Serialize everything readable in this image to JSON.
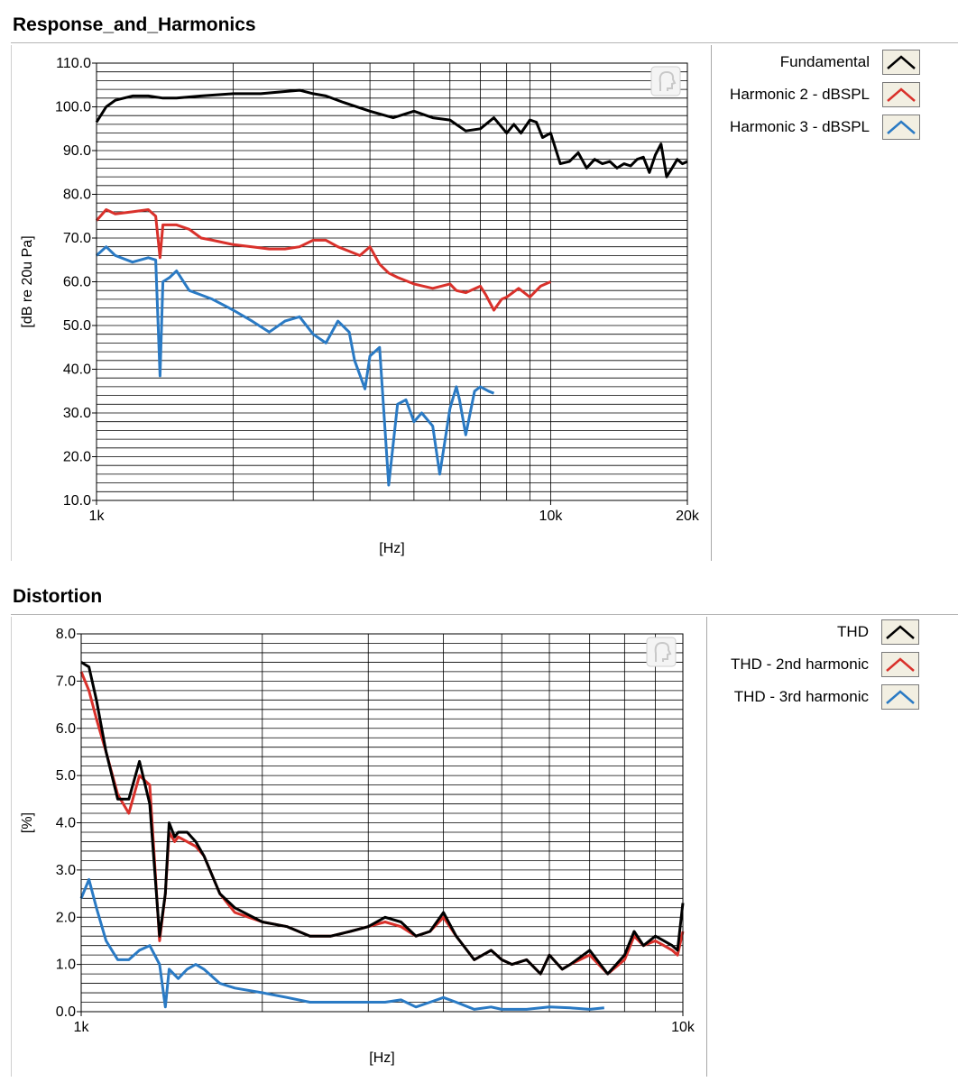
{
  "charts": [
    {
      "section_title": "Response_and_Harmonics",
      "legend": [
        {
          "label": "Fundamental",
          "color": "#000000"
        },
        {
          "label": "Harmonic 2 - dBSPL",
          "color": "#d9312b"
        },
        {
          "label": "Harmonic 3 - dBSPL",
          "color": "#2a7ac4"
        }
      ]
    },
    {
      "section_title": "Distortion",
      "legend": [
        {
          "label": "THD",
          "color": "#000000"
        },
        {
          "label": "THD - 2nd harmonic",
          "color": "#d9312b"
        },
        {
          "label": "THD - 3rd harmonic",
          "color": "#2a7ac4"
        }
      ]
    }
  ],
  "chart_data": [
    {
      "type": "line",
      "title": "Response_and_Harmonics",
      "xlabel": "[Hz]",
      "ylabel": "[dB re 20u Pa]",
      "xscale": "log",
      "xlim": [
        1000,
        20000
      ],
      "ylim": [
        10,
        110
      ],
      "x_tick_labels": [
        {
          "value": 1000,
          "label": "1k"
        },
        {
          "value": 10000,
          "label": "10k"
        },
        {
          "value": 20000,
          "label": "20k"
        }
      ],
      "y_tick_labels": [
        "10.0",
        "20.0",
        "30.0",
        "40.0",
        "50.0",
        "60.0",
        "70.0",
        "80.0",
        "90.0",
        "100.0",
        "110.0"
      ],
      "y_ticks": [
        10,
        20,
        30,
        40,
        50,
        60,
        70,
        80,
        90,
        100,
        110
      ],
      "grid": true,
      "legend_position": "right",
      "series": [
        {
          "name": "Fundamental",
          "color": "#000000",
          "x": [
            1000,
            1050,
            1100,
            1200,
            1300,
            1400,
            1500,
            1700,
            2000,
            2300,
            2600,
            2800,
            3000,
            3200,
            3500,
            4000,
            4500,
            5000,
            5500,
            6000,
            6500,
            7000,
            7500,
            8000,
            8300,
            8600,
            9000,
            9300,
            9600,
            10000,
            10500,
            11000,
            11500,
            12000,
            12500,
            13000,
            13500,
            14000,
            14500,
            15000,
            15500,
            16000,
            16500,
            17000,
            17500,
            18000,
            18500,
            19000,
            19500,
            20000
          ],
          "y": [
            96.5,
            100,
            101.5,
            102.5,
            102.5,
            102,
            102,
            102.5,
            103,
            103,
            103.5,
            103.8,
            103,
            102.5,
            101,
            99,
            97.5,
            99,
            97.5,
            97,
            94.5,
            95,
            97.5,
            94,
            96,
            94,
            97,
            96.5,
            93,
            94,
            87,
            87.5,
            89.5,
            86,
            88,
            87,
            87.5,
            86,
            87,
            86.5,
            88,
            88.5,
            85,
            89,
            91.5,
            84,
            86,
            88,
            87,
            87.5
          ]
        },
        {
          "name": "Harmonic 2 - dBSPL",
          "color": "#d9312b",
          "x": [
            1000,
            1050,
            1100,
            1200,
            1300,
            1350,
            1380,
            1400,
            1450,
            1500,
            1600,
            1700,
            1800,
            2000,
            2200,
            2400,
            2600,
            2800,
            3000,
            3200,
            3400,
            3600,
            3800,
            4000,
            4200,
            4400,
            4600,
            5000,
            5500,
            6000,
            6200,
            6500,
            7000,
            7200,
            7500,
            7800,
            8000,
            8500,
            9000,
            9500,
            10000
          ],
          "y": [
            74,
            76.5,
            75.5,
            76,
            76.5,
            75,
            65.5,
            73,
            73,
            73,
            72,
            70,
            69.5,
            68.5,
            68,
            67.5,
            67.5,
            68,
            69.5,
            69.5,
            68,
            67,
            66,
            68,
            64,
            62,
            61,
            59.5,
            58.5,
            59.5,
            58,
            57.5,
            59,
            57,
            53.5,
            56,
            56.5,
            58.5,
            56.5,
            59,
            60
          ]
        },
        {
          "name": "Harmonic 3 - dBSPL",
          "color": "#2a7ac4",
          "x": [
            1000,
            1050,
            1100,
            1200,
            1300,
            1350,
            1380,
            1400,
            1450,
            1500,
            1600,
            1700,
            1800,
            2000,
            2200,
            2400,
            2600,
            2800,
            3000,
            3200,
            3400,
            3600,
            3700,
            3900,
            4000,
            4200,
            4400,
            4600,
            4800,
            5000,
            5200,
            5500,
            5700,
            6000,
            6200,
            6300,
            6500,
            6800,
            7000,
            7300,
            7500
          ],
          "y": [
            66,
            68,
            66,
            64.5,
            65.5,
            65,
            38.5,
            60,
            61,
            62.5,
            58,
            57,
            56,
            53.5,
            51,
            48.5,
            51,
            52,
            48,
            46,
            51,
            48.5,
            42,
            35.5,
            43,
            45,
            13.5,
            32,
            33,
            28,
            30,
            27,
            16,
            31,
            36,
            33,
            25,
            35,
            36,
            35,
            34.5
          ]
        }
      ]
    },
    {
      "type": "line",
      "title": "Distortion",
      "xlabel": "[Hz]",
      "ylabel": "[%]",
      "xscale": "log",
      "xlim": [
        1000,
        10000
      ],
      "ylim": [
        0,
        8
      ],
      "x_tick_labels": [
        {
          "value": 1000,
          "label": "1k"
        },
        {
          "value": 10000,
          "label": "10k"
        }
      ],
      "y_tick_labels": [
        "0.0",
        "1.0",
        "2.0",
        "3.0",
        "4.0",
        "5.0",
        "6.0",
        "7.0",
        "8.0"
      ],
      "y_ticks": [
        0,
        1,
        2,
        3,
        4,
        5,
        6,
        7,
        8
      ],
      "grid": true,
      "legend_position": "right",
      "series": [
        {
          "name": "THD",
          "color": "#000000",
          "x": [
            1000,
            1030,
            1060,
            1100,
            1150,
            1200,
            1250,
            1300,
            1350,
            1380,
            1400,
            1430,
            1450,
            1500,
            1550,
            1600,
            1700,
            1800,
            2000,
            2200,
            2400,
            2600,
            2800,
            3000,
            3200,
            3400,
            3600,
            3800,
            4000,
            4200,
            4500,
            4800,
            5000,
            5200,
            5500,
            5800,
            6000,
            6300,
            6500,
            7000,
            7500,
            8000,
            8300,
            8600,
            9000,
            9300,
            9600,
            9800,
            10000
          ],
          "y": [
            7.4,
            7.3,
            6.6,
            5.5,
            4.5,
            4.5,
            5.3,
            4.4,
            1.6,
            2.5,
            4,
            3.7,
            3.8,
            3.8,
            3.6,
            3.3,
            2.5,
            2.2,
            1.9,
            1.8,
            1.6,
            1.6,
            1.7,
            1.8,
            2,
            1.9,
            1.6,
            1.7,
            2.1,
            1.6,
            1.1,
            1.3,
            1.1,
            1,
            1.1,
            0.8,
            1.2,
            0.9,
            1,
            1.3,
            0.8,
            1.2,
            1.7,
            1.4,
            1.6,
            1.5,
            1.4,
            1.3,
            2.3
          ]
        },
        {
          "name": "THD - 2nd harmonic",
          "color": "#d9312b",
          "x": [
            1000,
            1030,
            1060,
            1100,
            1150,
            1200,
            1250,
            1300,
            1350,
            1380,
            1400,
            1430,
            1450,
            1500,
            1550,
            1600,
            1700,
            1800,
            2000,
            2200,
            2400,
            2600,
            2800,
            3000,
            3200,
            3400,
            3600,
            3800,
            4000,
            4200,
            4500,
            4800,
            5000,
            5200,
            5500,
            5800,
            6000,
            6300,
            6500,
            7000,
            7500,
            8000,
            8300,
            8600,
            9000,
            9300,
            9600,
            9800,
            10000
          ],
          "y": [
            7.2,
            6.8,
            6.2,
            5.5,
            4.6,
            4.2,
            5,
            4.8,
            1.5,
            2.5,
            3.8,
            3.6,
            3.7,
            3.6,
            3.5,
            3.3,
            2.5,
            2.1,
            1.9,
            1.8,
            1.6,
            1.6,
            1.7,
            1.8,
            1.9,
            1.8,
            1.6,
            1.7,
            2,
            1.6,
            1.1,
            1.3,
            1.1,
            1,
            1.1,
            0.8,
            1.2,
            0.9,
            1,
            1.2,
            0.8,
            1.1,
            1.6,
            1.4,
            1.5,
            1.4,
            1.3,
            1.2,
            1.7
          ]
        },
        {
          "name": "THD - 3rd harmonic",
          "color": "#2a7ac4",
          "x": [
            1000,
            1030,
            1060,
            1100,
            1150,
            1200,
            1250,
            1300,
            1350,
            1380,
            1400,
            1450,
            1500,
            1550,
            1600,
            1700,
            1800,
            2000,
            2200,
            2400,
            2600,
            2800,
            3000,
            3200,
            3400,
            3600,
            3800,
            4000,
            4200,
            4500,
            4800,
            5000,
            5500,
            6000,
            6500,
            7000,
            7400
          ],
          "y": [
            2.4,
            2.8,
            2.2,
            1.5,
            1.1,
            1.1,
            1.3,
            1.4,
            1,
            0.1,
            0.9,
            0.7,
            0.9,
            1,
            0.9,
            0.6,
            0.5,
            0.4,
            0.3,
            0.2,
            0.2,
            0.2,
            0.2,
            0.2,
            0.25,
            0.1,
            0.2,
            0.3,
            0.2,
            0.05,
            0.1,
            0.05,
            0.05,
            0.1,
            0.08,
            0.05,
            0.08
          ]
        }
      ]
    }
  ]
}
